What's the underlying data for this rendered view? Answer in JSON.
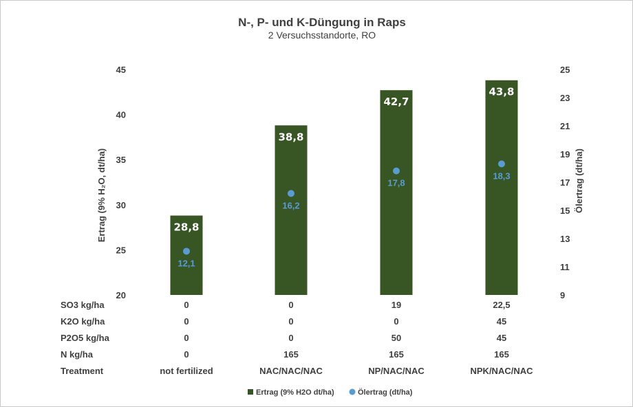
{
  "chart_data": {
    "type": "bar",
    "title": "N-, P- und K-Düngung in Raps",
    "subtitle": "2 Versuchsstandorte,  RO",
    "ylabel": "Ertrag (9% H₂O, dt/ha)",
    "y2label": "Ölertrag (dt/ha)",
    "ylim": [
      20,
      45
    ],
    "y_ticks": [
      "20",
      "25",
      "30",
      "35",
      "40",
      "45"
    ],
    "y2lim": [
      9,
      25
    ],
    "y2_ticks": [
      "9",
      "11",
      "13",
      "15",
      "17",
      "19",
      "21",
      "23",
      "25"
    ],
    "categories": [
      "not fertilized",
      "NAC/NAC/NAC",
      "NP/NAC/NAC",
      "NPK/NAC/NAC"
    ],
    "series": [
      {
        "name": "Ertrag (9% H2O dt/ha)",
        "type": "bar",
        "axis": "left",
        "color": "#375623",
        "values": [
          28.8,
          38.8,
          42.7,
          43.8
        ],
        "labels": [
          "28,8",
          "38,8",
          "42,7",
          "43,8"
        ]
      },
      {
        "name": "Ölertrag (dt/ha)",
        "type": "scatter",
        "axis": "right",
        "color": "#5b9bd5",
        "values": [
          12.1,
          16.2,
          17.8,
          18.3
        ],
        "labels": [
          "12,1",
          "16,2",
          "17,8",
          "18,3"
        ]
      }
    ],
    "legend_position": "bottom",
    "grid": false,
    "table": {
      "rows": [
        {
          "label": "SO3 kg/ha",
          "values": [
            "0",
            "0",
            "19",
            "22,5"
          ]
        },
        {
          "label": "K2O kg/ha",
          "values": [
            "0",
            "0",
            "0",
            "45"
          ]
        },
        {
          "label": "P2O5 kg/ha",
          "values": [
            "0",
            "0",
            "50",
            "45"
          ]
        },
        {
          "label": "N kg/ha",
          "values": [
            "0",
            "165",
            "165",
            "165"
          ]
        }
      ],
      "category_row_label": "Treatment"
    }
  }
}
